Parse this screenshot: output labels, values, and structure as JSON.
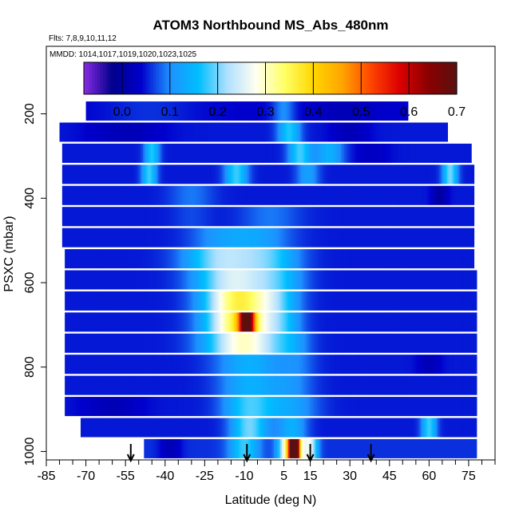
{
  "chart_data": {
    "type": "heatmap",
    "title": "ATOM3 Northbound MS_Abs_480nm",
    "subtitle_flights": "Flts: 7,8,9,10,11,12",
    "subtitle_dates": "MMDD: 1014,1017,1019,1020,1023,1025",
    "xlabel": "Latitude (deg N)",
    "ylabel": "PSXC (mbar)",
    "xlim": [
      -85,
      85
    ],
    "ylim": [
      1020,
      40
    ],
    "x_tick_labels": [
      "-85",
      "-70",
      "-55",
      "-40",
      "-25",
      "-10",
      "5",
      "15",
      "30",
      "45",
      "60",
      "75"
    ],
    "x_tick_values": [
      -85,
      -70,
      -55,
      -40,
      -25,
      -10,
      5,
      15,
      30,
      45,
      60,
      75
    ],
    "y_tick_labels": [
      "200",
      "400",
      "600",
      "800",
      "1000"
    ],
    "y_tick_values": [
      200,
      400,
      600,
      800,
      1000
    ],
    "colorbar": {
      "min": -0.08,
      "max": 0.7,
      "tick_labels": [
        "0.0",
        "0.1",
        "0.2",
        "0.3",
        "0.4",
        "0.5",
        "0.6",
        "0.7"
      ],
      "tick_values": [
        0.0,
        0.1,
        0.2,
        0.3,
        0.4,
        0.5,
        0.6,
        0.7
      ],
      "colors": [
        "#8a2be2",
        "#00008b",
        "#0000cd",
        "#1e90ff",
        "#00bfff",
        "#b0e0ff",
        "#fffff0",
        "#ffff66",
        "#ffd700",
        "#ffa500",
        "#ff4500",
        "#dd0000",
        "#8b0000",
        "#5a1010"
      ]
    },
    "profile_arrows_latitude": [
      -53,
      -9,
      15,
      38
    ],
    "rows": [
      {
        "p": 200,
        "lat0": -70,
        "lat1": 52,
        "base": 0.04,
        "features": [
          {
            "c": -46,
            "w": 12,
            "v": 0.06
          },
          {
            "c": 5,
            "w": 3,
            "v": 0.1
          },
          {
            "c": 28,
            "w": 8,
            "v": 0.02
          }
        ]
      },
      {
        "p": 250,
        "lat0": -80,
        "lat1": 67,
        "base": 0.05,
        "features": [
          {
            "c": -55,
            "w": 10,
            "v": 0.02
          },
          {
            "c": 7,
            "w": 3,
            "v": 0.17
          },
          {
            "c": 30,
            "w": 5,
            "v": 0.02
          }
        ]
      },
      {
        "p": 300,
        "lat0": -79,
        "lat1": 76,
        "base": 0.05,
        "features": [
          {
            "c": -45,
            "w": 2,
            "v": 0.17
          },
          {
            "c": 11,
            "w": 3,
            "v": 0.18
          },
          {
            "c": 22,
            "w": 4,
            "v": 0.14
          },
          {
            "c": 38,
            "w": 5,
            "v": 0.03
          }
        ]
      },
      {
        "p": 350,
        "lat0": -79,
        "lat1": 77,
        "base": 0.05,
        "features": [
          {
            "c": -46,
            "w": 2,
            "v": 0.18
          },
          {
            "c": -13,
            "w": 3,
            "v": 0.18
          },
          {
            "c": 14,
            "w": 3,
            "v": 0.12
          },
          {
            "c": 68,
            "w": 2,
            "v": 0.2
          }
        ]
      },
      {
        "p": 400,
        "lat0": -79,
        "lat1": 77,
        "base": 0.05,
        "features": [
          {
            "c": -30,
            "w": 6,
            "v": 0.09
          },
          {
            "c": 64,
            "w": 2,
            "v": 0.0
          }
        ]
      },
      {
        "p": 450,
        "lat0": -79,
        "lat1": 77,
        "base": 0.05,
        "features": [
          {
            "c": -30,
            "w": 5,
            "v": 0.07
          },
          {
            "c": 0,
            "w": 8,
            "v": 0.09
          }
        ]
      },
      {
        "p": 500,
        "lat0": -79,
        "lat1": 77,
        "base": 0.05,
        "features": [
          {
            "c": -20,
            "w": 8,
            "v": 0.1
          },
          {
            "c": -5,
            "w": 9,
            "v": 0.12
          }
        ]
      },
      {
        "p": 550,
        "lat0": -78,
        "lat1": 77,
        "base": 0.05,
        "features": [
          {
            "c": -18,
            "w": 10,
            "v": 0.22
          },
          {
            "c": 0,
            "w": 8,
            "v": 0.16
          }
        ]
      },
      {
        "p": 600,
        "lat0": -78,
        "lat1": 78,
        "base": 0.05,
        "features": [
          {
            "c": -14,
            "w": 10,
            "v": 0.25
          },
          {
            "c": 3,
            "w": 7,
            "v": 0.14
          }
        ]
      },
      {
        "p": 650,
        "lat0": -78,
        "lat1": 78,
        "base": 0.05,
        "features": [
          {
            "c": -12,
            "w": 9,
            "v": 0.36
          },
          {
            "c": 3,
            "w": 6,
            "v": 0.14
          }
        ]
      },
      {
        "p": 700,
        "lat0": -78,
        "lat1": 78,
        "base": 0.05,
        "features": [
          {
            "c": -11,
            "w": 9,
            "v": 0.38
          },
          {
            "c": -9,
            "w": 2,
            "v": 0.46
          },
          {
            "c": 5,
            "w": 5,
            "v": 0.12
          }
        ]
      },
      {
        "p": 750,
        "lat0": -78,
        "lat1": 78,
        "base": 0.05,
        "features": [
          {
            "c": -10,
            "w": 10,
            "v": 0.3
          },
          {
            "c": 8,
            "w": 5,
            "v": 0.1
          }
        ]
      },
      {
        "p": 800,
        "lat0": -78,
        "lat1": 78,
        "base": 0.05,
        "features": [
          {
            "c": -8,
            "w": 9,
            "v": 0.14
          },
          {
            "c": 10,
            "w": 5,
            "v": 0.09
          },
          {
            "c": 60,
            "w": 3,
            "v": 0.02
          }
        ]
      },
      {
        "p": 850,
        "lat0": -78,
        "lat1": 78,
        "base": 0.05,
        "features": [
          {
            "c": -8,
            "w": 8,
            "v": 0.14
          },
          {
            "c": 8,
            "w": 6,
            "v": 0.1
          }
        ]
      },
      {
        "p": 900,
        "lat0": -78,
        "lat1": 78,
        "base": 0.05,
        "features": [
          {
            "c": -60,
            "w": 8,
            "v": 0.02
          },
          {
            "c": -8,
            "w": 7,
            "v": 0.18
          },
          {
            "c": 8,
            "w": 7,
            "v": 0.12
          }
        ]
      },
      {
        "p": 950,
        "lat0": -72,
        "lat1": 78,
        "base": 0.05,
        "features": [
          {
            "c": -8,
            "w": 5,
            "v": 0.2
          },
          {
            "c": 8,
            "w": 4,
            "v": 0.14
          },
          {
            "c": 60,
            "w": 2,
            "v": 0.18
          }
        ]
      },
      {
        "p": 1000,
        "lat0": -48,
        "lat1": 78,
        "base": 0.06,
        "features": [
          {
            "c": -38,
            "w": 3,
            "v": 0.02
          },
          {
            "c": -10,
            "w": 4,
            "v": 0.18
          },
          {
            "c": 8,
            "w": 3,
            "v": 0.44
          },
          {
            "c": 9,
            "w": 1.2,
            "v": 0.68
          },
          {
            "c": 15,
            "w": 2,
            "v": 0.24
          }
        ]
      }
    ]
  }
}
